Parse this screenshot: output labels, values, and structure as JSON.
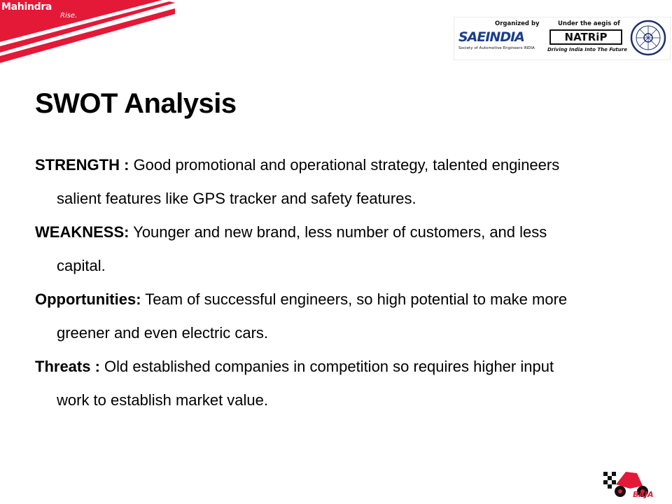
{
  "branding": {
    "brand_name": "Mahindra",
    "brand_tagline": "Rise.",
    "accent_color": "#e31937"
  },
  "organizers": {
    "organized_by_label": "Organized by",
    "sae_logo_text": "SAEINDIA",
    "sae_full_name": "Society of Automotive Engineers INDIA",
    "aegis_label": "Under the aegis of",
    "natrip_logo_text": "NATRiP",
    "natrip_tagline": "Driving India Into The Future",
    "emblem_icon": "government-emblem-icon"
  },
  "slide": {
    "title": "SWOT Analysis",
    "items": [
      {
        "heading": "STRENGTH :",
        "line1": " Good promotional and operational strategy, talented engineers",
        "line2": "salient features like GPS tracker and safety features."
      },
      {
        "heading": "WEAKNESS:",
        "line1": " Younger and new brand, less number of customers,  and less",
        "line2": "capital."
      },
      {
        "heading": "Opportunities:",
        "line1": " Team of successful engineers, so high potential to make more",
        "line2": "greener and even electric cars."
      },
      {
        "heading": "Threats :",
        "line1": " Old established companies in competition so requires higher input",
        "line2": "work to establish market value."
      }
    ]
  },
  "footer": {
    "event_logo_text": "BAJA",
    "event_logo_icon": "baja-buggy-icon"
  }
}
